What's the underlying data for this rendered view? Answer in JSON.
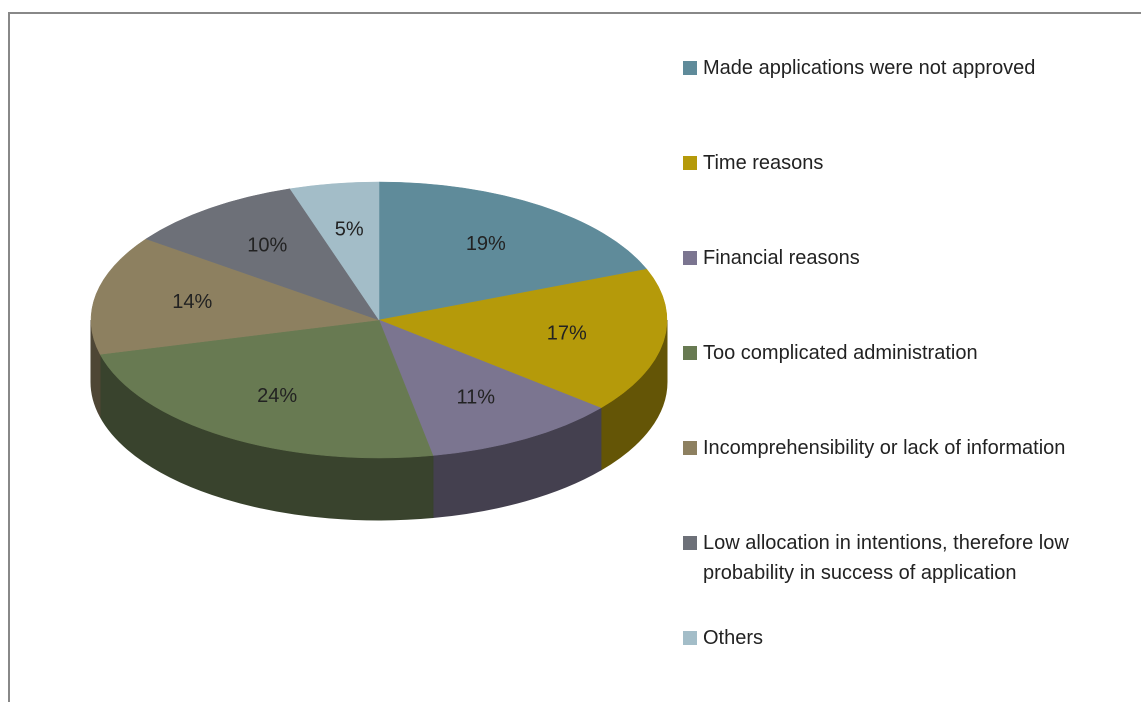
{
  "chart_data": {
    "type": "pie",
    "categories": [
      "Made applications were not approved",
      "Time reasons",
      "Financial reasons",
      "Too complicated administration",
      "Incomprehensibility or lack of information",
      "Low allocation in intentions, therefore low probability in success of application",
      "Others"
    ],
    "values": [
      19,
      17,
      11,
      24,
      14,
      10,
      5
    ],
    "value_labels": [
      "19%",
      "17%",
      "11%",
      "24%",
      "14%",
      "10%",
      "5%"
    ],
    "colors": [
      "#5f8b9a",
      "#b59a0a",
      "#7b7590",
      "#687a52",
      "#8d8060",
      "#6d7078",
      "#a3bdc8"
    ],
    "legend": "right"
  }
}
